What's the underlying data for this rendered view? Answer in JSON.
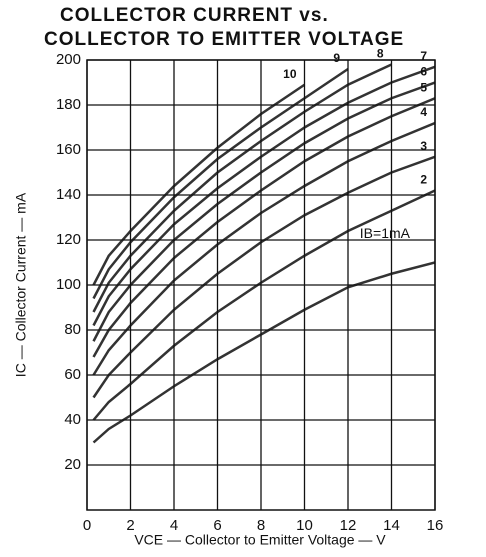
{
  "chart_data": {
    "type": "line",
    "title": "COLLECTOR CURRENT vs.",
    "subtitle": "COLLECTOR TO EMITTER VOLTAGE",
    "x_label": "VCE — Collector to Emitter Voltage — V",
    "y_label": "IC — Collector Current — mA",
    "x": [
      0.3,
      1,
      2,
      4,
      6,
      8,
      10,
      12,
      14,
      16
    ],
    "series": [
      {
        "name": "IB=1mA",
        "color": "#333333",
        "values": [
          30,
          36,
          42,
          55,
          67,
          78,
          89,
          99,
          105,
          110
        ]
      },
      {
        "name": "2",
        "color": "#333333",
        "values": [
          40,
          48,
          56,
          73,
          88,
          101,
          113,
          124,
          133,
          142
        ]
      },
      {
        "name": "3",
        "color": "#333333",
        "values": [
          50,
          60,
          70,
          89,
          105,
          119,
          131,
          141,
          150,
          157
        ]
      },
      {
        "name": "4",
        "color": "#333333",
        "values": [
          60,
          71,
          82,
          102,
          118,
          132,
          144,
          155,
          164,
          172
        ]
      },
      {
        "name": "5",
        "color": "#333333",
        "values": [
          68,
          80,
          92,
          112,
          128,
          142,
          155,
          166,
          175,
          183
        ]
      },
      {
        "name": "6",
        "color": "#333333",
        "values": [
          75,
          88,
          100,
          120,
          136,
          150,
          163,
          174,
          183,
          190
        ]
      },
      {
        "name": "7",
        "color": "#333333",
        "values": [
          82,
          95,
          107,
          127,
          143,
          157,
          170,
          181,
          190,
          197
        ]
      },
      {
        "name": "8",
        "color": "#333333",
        "values": [
          88,
          101,
          113,
          133,
          150,
          164,
          177,
          189,
          198,
          null
        ]
      },
      {
        "name": "9",
        "color": "#333333",
        "values": [
          94,
          107,
          119,
          139,
          156,
          170,
          183,
          196,
          null,
          null
        ]
      },
      {
        "name": "10",
        "color": "#333333",
        "values": [
          100,
          113,
          124,
          144,
          161,
          176,
          189,
          null,
          null,
          null
        ]
      }
    ],
    "xlim": [
      0,
      16
    ],
    "xticks": [
      0,
      2,
      4,
      6,
      8,
      10,
      12,
      14,
      16
    ],
    "ylim": [
      0,
      200
    ],
    "yticks": [
      20,
      40,
      60,
      80,
      100,
      120,
      140,
      160,
      180,
      200
    ],
    "grid": true
  }
}
